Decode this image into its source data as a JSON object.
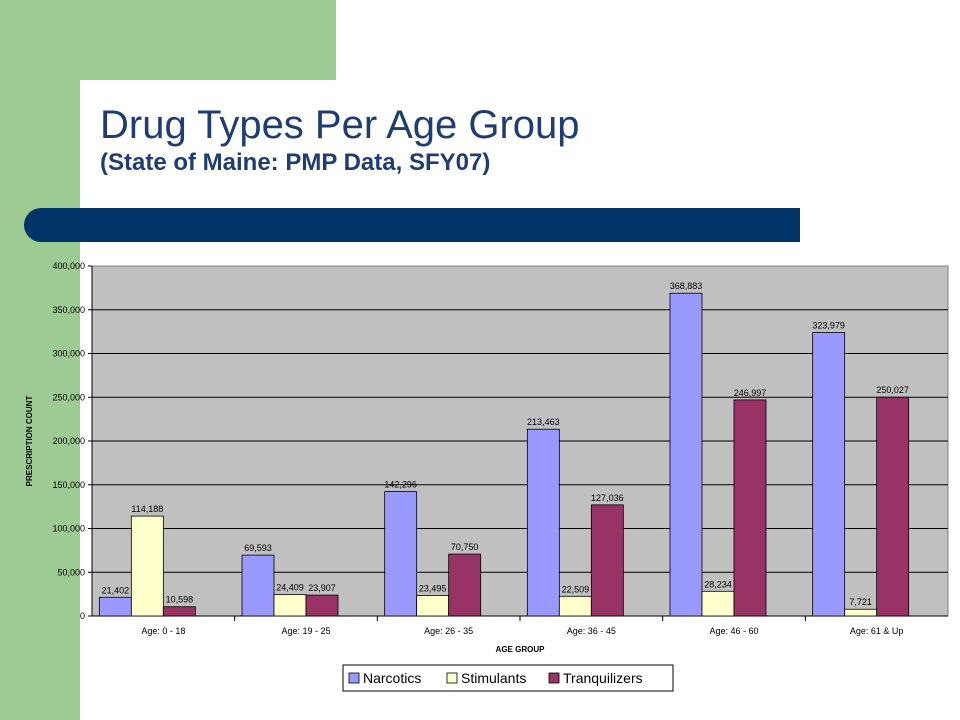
{
  "slide": {
    "title": "Drug Types Per Age Group",
    "subtitle": "(State of Maine: PMP Data, SFY07)"
  },
  "colors": {
    "green": "#9dcb94",
    "navy": "#003366",
    "title": "#1f3d73",
    "plot_bg": "#c0c0c0"
  },
  "chart_data": {
    "type": "bar",
    "xlabel": "AGE GROUP",
    "ylabel": "PRESCRIPTION COUNT",
    "ylim": [
      0,
      400000
    ],
    "yticks": [
      "0",
      "50,000",
      "100,000",
      "150,000",
      "200,000",
      "250,000",
      "300,000",
      "350,000",
      "400,000"
    ],
    "categories": [
      "Age: 0 - 18",
      "Age:  19 - 25",
      "Age: 26 - 35",
      "Age: 36 - 45",
      "Age: 46 - 60",
      "Age: 61 & Up"
    ],
    "series": [
      {
        "name": "Narcotics",
        "color": "#9999ff",
        "values": [
          21402,
          69593,
          142296,
          213463,
          368883,
          323979
        ],
        "labels": [
          "21,402",
          "69,593",
          "142,296",
          "213,463",
          "368,883",
          "323,979"
        ]
      },
      {
        "name": "Stimulants",
        "color": "#ffffcc",
        "values": [
          114188,
          24409,
          23495,
          22509,
          28234,
          7721
        ],
        "labels": [
          "114,188",
          "24,409",
          "23,495",
          "22,509",
          "28,234",
          "7,721"
        ]
      },
      {
        "name": "Tranquilizers",
        "color": "#993366",
        "values": [
          10598,
          23907,
          70750,
          127036,
          246997,
          250027
        ],
        "labels": [
          "10,598",
          "23,907",
          "70,750",
          "127,036",
          "246,997",
          "250,027"
        ]
      }
    ],
    "grid": true,
    "legend": "bottom"
  }
}
